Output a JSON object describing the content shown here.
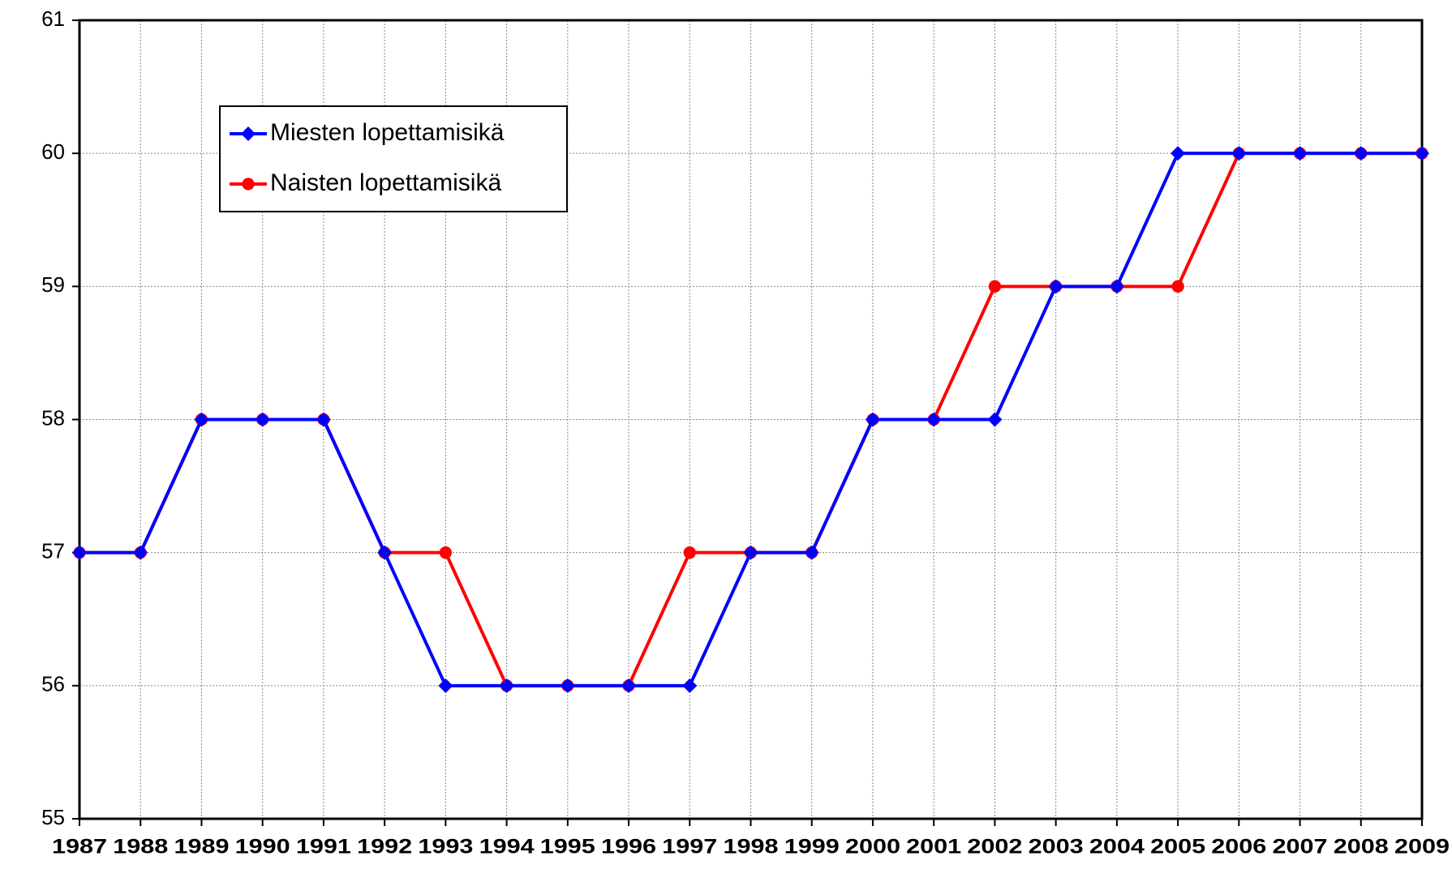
{
  "chart_data": {
    "type": "line",
    "categories": [
      "1987",
      "1988",
      "1989",
      "1990",
      "1991",
      "1992",
      "1993",
      "1994",
      "1995",
      "1996",
      "1997",
      "1998",
      "1999",
      "2000",
      "2001",
      "2002",
      "2003",
      "2004",
      "2005",
      "2006",
      "2007",
      "2008",
      "2009"
    ],
    "series": [
      {
        "name": "Miesten lopettamisikä",
        "color": "#0000ff",
        "marker": "diamond",
        "values": [
          57,
          57,
          58,
          58,
          58,
          57,
          56,
          56,
          56,
          56,
          56,
          57,
          57,
          58,
          58,
          58,
          59,
          59,
          60,
          60,
          60,
          60,
          60
        ]
      },
      {
        "name": "Naisten lopettamisikä",
        "color": "#ff0000",
        "marker": "circle",
        "values": [
          57,
          57,
          58,
          58,
          58,
          57,
          57,
          56,
          56,
          56,
          57,
          57,
          57,
          58,
          58,
          59,
          59,
          59,
          59,
          60,
          60,
          60,
          60
        ]
      }
    ],
    "ylim": [
      55,
      61
    ],
    "yticks": [
      55,
      56,
      57,
      58,
      59,
      60,
      61
    ],
    "grid": true,
    "legend": "upper-left"
  }
}
